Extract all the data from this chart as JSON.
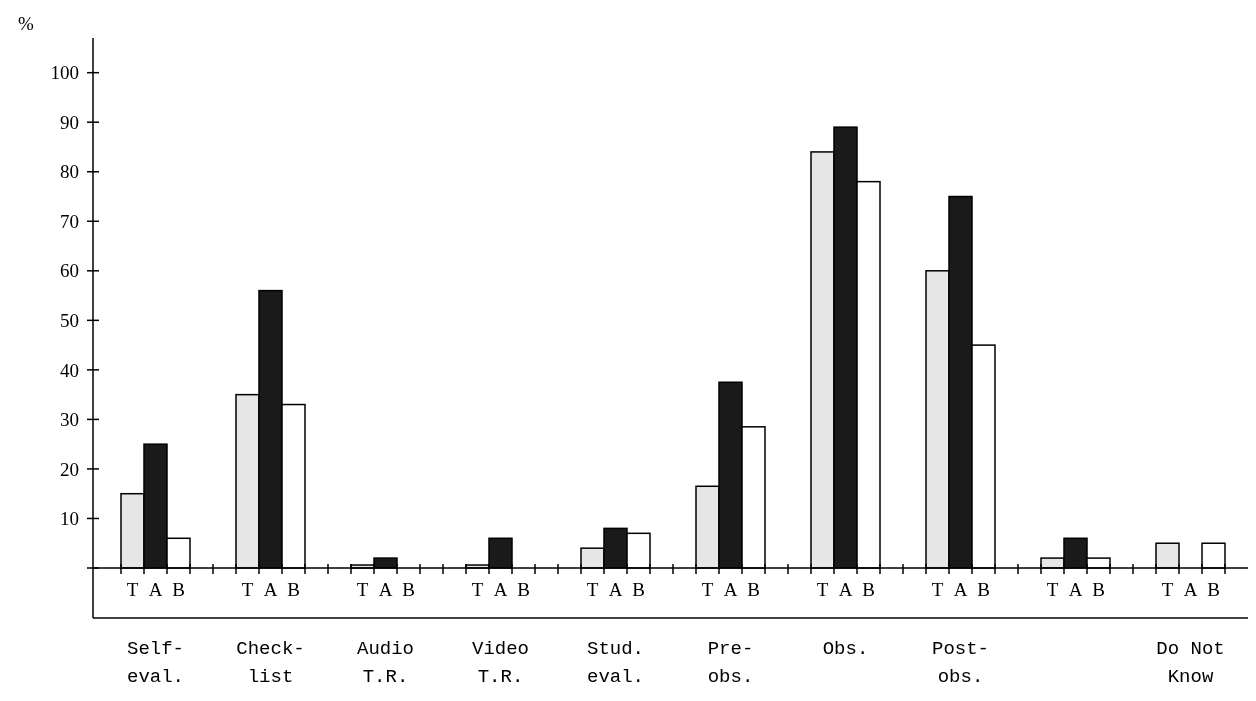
{
  "chart_data": {
    "type": "bar",
    "ylabel": "%",
    "categories": [
      "Self-\neval.",
      "Check-\nlist",
      "Audio\nT.R.",
      "Video\nT.R.",
      "Stud.\neval.",
      "Pre-\nobs.",
      "Obs.",
      "Post-\nobs.",
      null,
      "Do Not\nKnow"
    ],
    "series": [
      {
        "name": "T",
        "color": "#e6e6e6",
        "values": [
          15,
          35,
          0.6,
          0.6,
          4,
          16.5,
          84,
          60,
          2,
          5
        ]
      },
      {
        "name": "A",
        "color": "#1a1a1a",
        "values": [
          25,
          56,
          2,
          6,
          8,
          37.5,
          89,
          75,
          6,
          null
        ]
      },
      {
        "name": "B",
        "color": "#ffffff",
        "values": [
          6,
          33,
          null,
          null,
          7,
          28.5,
          78,
          45,
          2,
          5
        ]
      }
    ],
    "ylim": [
      0,
      107
    ],
    "yticks": [
      {
        "value": 0,
        "label": null
      },
      10,
      20,
      30,
      40,
      50,
      60,
      70,
      80,
      90,
      100
    ],
    "grid": false,
    "legend": "bottom"
  }
}
